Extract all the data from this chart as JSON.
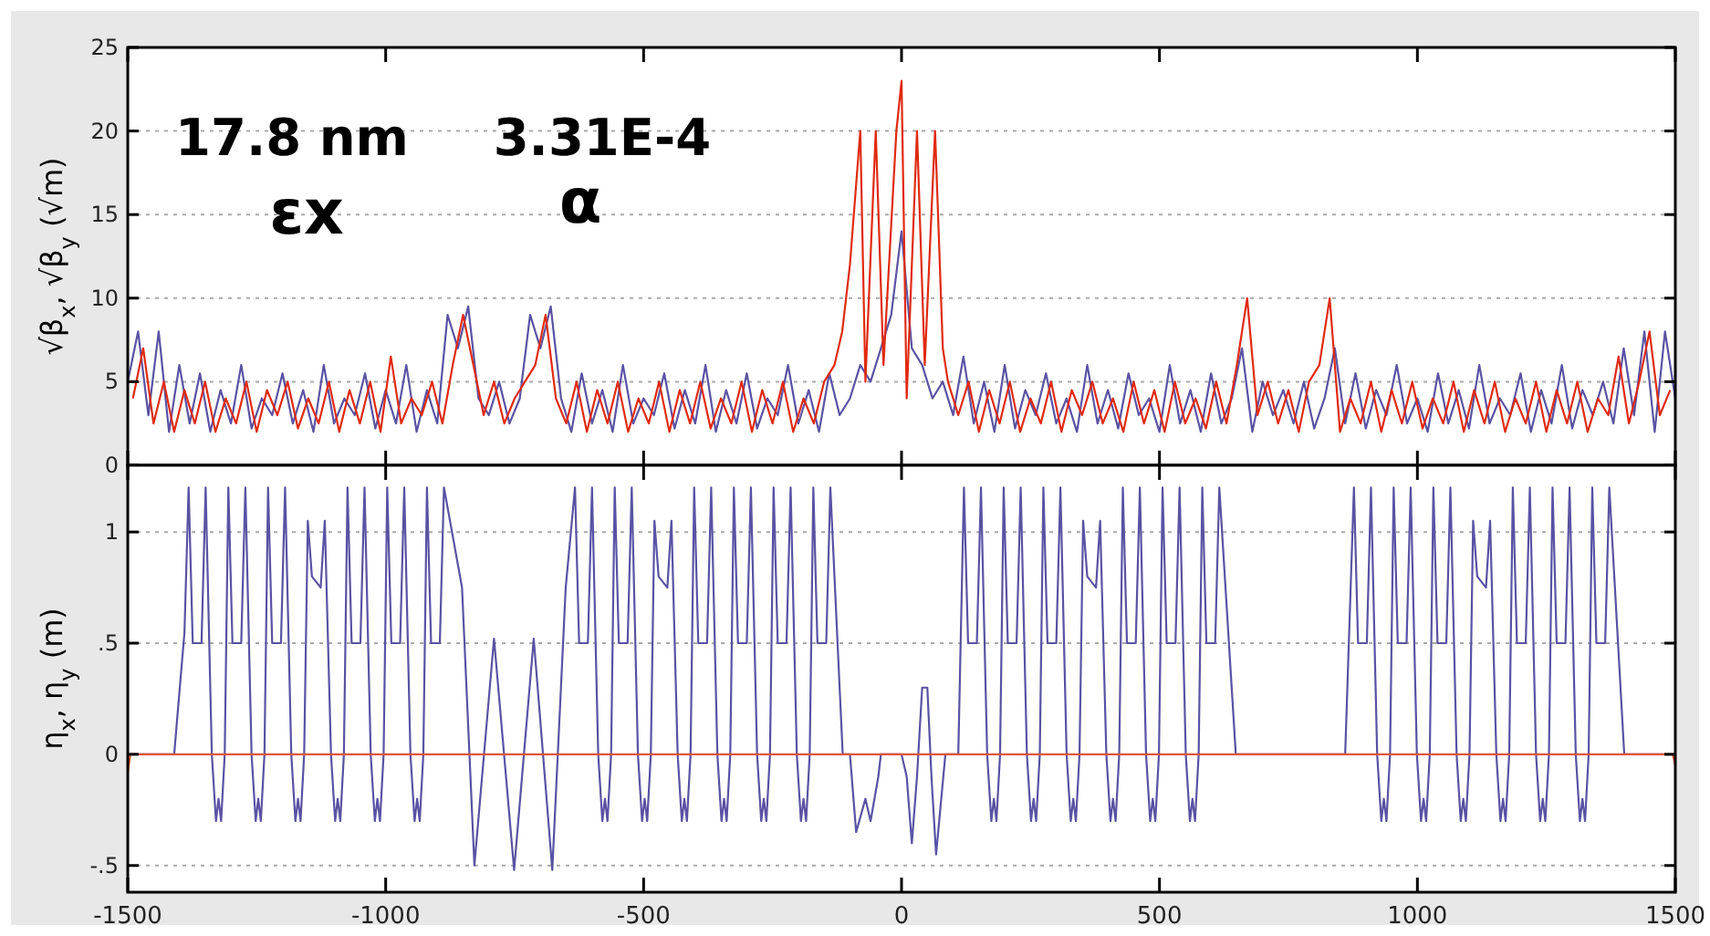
{
  "chart_data": [
    {
      "type": "line",
      "ylabel": "√β$_{x}$, √β$_{y}$ (√m)",
      "xlim": [
        -1500,
        1500
      ],
      "xticks": [
        -1500,
        -1000,
        -500,
        0,
        500,
        1000,
        1500
      ],
      "ylim": [
        0,
        25
      ],
      "yticks": [
        0,
        5,
        10,
        15,
        20,
        25
      ],
      "grid": "y",
      "tick_labels": "y",
      "line_style": "solid",
      "annotations": [
        "17.8 nm",
        "3.31E-4",
        "εx",
        "α"
      ],
      "series": [
        {
          "color": "#5a52a3",
          "x": [
            -1500,
            -1480,
            -1460,
            -1440,
            -1420,
            -1400,
            -1380,
            -1360,
            -1340,
            -1320,
            -1300,
            -1280,
            -1260,
            -1240,
            -1220,
            -1200,
            -1180,
            -1160,
            -1140,
            -1120,
            -1100,
            -1080,
            -1060,
            -1040,
            -1020,
            -1000,
            -980,
            -960,
            -940,
            -920,
            -900,
            -880,
            -860,
            -840,
            -820,
            -800,
            -780,
            -760,
            -740,
            -720,
            -700,
            -680,
            -660,
            -640,
            -620,
            -600,
            -580,
            -560,
            -540,
            -520,
            -500,
            -480,
            -460,
            -440,
            -420,
            -400,
            -380,
            -360,
            -340,
            -320,
            -300,
            -280,
            -260,
            -240,
            -220,
            -200,
            -180,
            -160,
            -140,
            -120,
            -100,
            -80,
            -60,
            -40,
            -20,
            0,
            20,
            40,
            60,
            80,
            100,
            120,
            140,
            160,
            180,
            200,
            220,
            240,
            260,
            280,
            300,
            320,
            340,
            360,
            380,
            400,
            420,
            440,
            460,
            480,
            500,
            520,
            540,
            560,
            580,
            600,
            620,
            640,
            660,
            680,
            700,
            720,
            740,
            760,
            780,
            800,
            820,
            840,
            860,
            880,
            900,
            920,
            940,
            960,
            980,
            1000,
            1020,
            1040,
            1060,
            1080,
            1100,
            1120,
            1140,
            1160,
            1180,
            1200,
            1220,
            1240,
            1260,
            1280,
            1300,
            1320,
            1340,
            1360,
            1380,
            1400,
            1420,
            1440,
            1460,
            1480,
            1500
          ],
          "values": [
            5,
            8,
            3,
            8,
            2,
            6,
            2.5,
            5.5,
            2,
            4.5,
            2.5,
            6,
            2.2,
            4,
            3,
            5.5,
            2.5,
            4.5,
            2,
            6,
            2.5,
            4,
            3,
            5.5,
            2.2,
            4.5,
            2.5,
            6,
            2,
            4.5,
            2.5,
            9,
            7,
            9.5,
            4,
            3,
            5,
            2.5,
            4,
            9,
            7,
            9.5,
            4,
            2,
            5.5,
            2.5,
            4.5,
            2,
            6,
            2.5,
            4,
            3,
            5.5,
            2.2,
            4.5,
            2.5,
            6,
            2,
            4.5,
            2.5,
            5.5,
            2.2,
            4,
            3,
            6,
            2.5,
            4.5,
            2,
            5.5,
            3,
            4,
            6,
            5,
            7,
            9,
            14,
            7,
            6,
            4,
            5,
            3,
            6.5,
            2.5,
            5,
            2,
            6,
            2.2,
            4.5,
            3,
            5.5,
            2.5,
            4,
            2,
            6,
            2.5,
            4.5,
            2.2,
            5.5,
            3,
            4,
            2,
            6,
            2.5,
            4.5,
            2,
            5.5,
            2.5,
            4,
            7,
            2,
            5,
            3,
            4.5,
            2.5,
            5,
            2.2,
            4,
            7,
            2.5,
            5.5,
            2.2,
            4.5,
            3,
            6,
            2.5,
            4,
            2,
            5.5,
            2.5,
            4.5,
            2.2,
            6,
            2.5,
            4,
            3,
            5.5,
            2,
            4.5,
            2.5,
            6,
            2.2,
            4.5,
            3,
            5,
            2.5,
            7,
            3,
            8,
            2,
            8,
            4
          ]
        },
        {
          "color": "#e02a10",
          "x": [
            -1490,
            -1470,
            -1450,
            -1430,
            -1410,
            -1390,
            -1370,
            -1350,
            -1330,
            -1310,
            -1290,
            -1270,
            -1250,
            -1230,
            -1210,
            -1190,
            -1170,
            -1150,
            -1130,
            -1110,
            -1090,
            -1070,
            -1050,
            -1030,
            -1010,
            -990,
            -970,
            -950,
            -930,
            -910,
            -890,
            -870,
            -850,
            -830,
            -810,
            -790,
            -770,
            -750,
            -730,
            -710,
            -690,
            -670,
            -650,
            -630,
            -610,
            -590,
            -570,
            -550,
            -530,
            -510,
            -490,
            -470,
            -450,
            -430,
            -410,
            -390,
            -370,
            -350,
            -330,
            -310,
            -290,
            -270,
            -250,
            -230,
            -210,
            -190,
            -170,
            -150,
            -130,
            -115,
            -100,
            -80,
            -70,
            -50,
            -35,
            -10,
            0,
            10,
            30,
            45,
            65,
            80,
            90,
            110,
            130,
            150,
            170,
            190,
            210,
            230,
            250,
            270,
            290,
            310,
            330,
            350,
            370,
            390,
            410,
            430,
            450,
            470,
            490,
            510,
            530,
            550,
            570,
            590,
            610,
            630,
            650,
            670,
            690,
            710,
            730,
            750,
            770,
            790,
            810,
            830,
            850,
            870,
            890,
            910,
            930,
            950,
            970,
            990,
            1010,
            1030,
            1050,
            1070,
            1090,
            1110,
            1130,
            1150,
            1170,
            1190,
            1210,
            1230,
            1250,
            1270,
            1290,
            1310,
            1330,
            1350,
            1370,
            1390,
            1410,
            1430,
            1450,
            1470,
            1490
          ],
          "values": [
            4,
            7,
            2.5,
            5,
            2,
            4.5,
            2.5,
            5,
            2,
            4,
            2.5,
            5,
            2,
            4.5,
            3,
            5,
            2.2,
            4,
            2.5,
            5,
            2,
            4.5,
            2.5,
            5,
            2,
            6.5,
            2.5,
            4,
            3,
            5,
            2.5,
            6,
            9,
            6,
            3,
            5,
            2.5,
            4,
            5,
            6,
            9,
            4,
            2.5,
            5,
            2,
            4.5,
            2.5,
            5,
            2,
            4,
            2.5,
            5,
            2,
            4.5,
            2.5,
            5,
            2.2,
            4,
            2.5,
            5,
            2,
            4.5,
            2.5,
            5,
            2,
            4,
            2.5,
            5,
            6,
            8,
            12,
            20,
            5,
            20,
            6,
            20,
            23,
            4,
            20,
            6,
            20,
            7,
            5,
            3,
            5,
            2,
            4.5,
            2.5,
            5,
            2,
            4,
            2.5,
            5,
            2,
            4.5,
            3,
            5,
            2.5,
            4,
            2,
            5,
            2.5,
            4.5,
            2,
            5,
            2.5,
            4,
            2.2,
            5,
            2.5,
            6,
            10,
            3,
            5,
            2.5,
            4.5,
            2,
            5,
            6,
            10,
            2,
            4,
            2.5,
            5,
            2,
            4.5,
            2.5,
            5,
            2.2,
            4,
            2.5,
            5,
            2,
            4.5,
            2.5,
            5,
            2,
            4,
            2.5,
            5,
            2,
            4.5,
            2.5,
            5,
            2,
            4,
            3,
            6.5,
            2.5,
            5,
            8,
            3,
            4.5
          ]
        }
      ]
    },
    {
      "type": "line",
      "ylabel": "η$_{x}$, η$_{y}$ (m)",
      "xlim": [
        -1500,
        1500
      ],
      "xticks": [
        -1500,
        -1000,
        -500,
        0,
        500,
        1000,
        1500
      ],
      "ylim": [
        -0.62,
        1.3
      ],
      "yticks": [
        {
          "value": -0.5,
          "label": "-.5"
        },
        0,
        {
          "value": 0.5,
          "label": ".5"
        },
        1
      ],
      "grid": "y",
      "line_style": "solid",
      "series": [
        {
          "color": "#5a52a3",
          "x": [
            -1500,
            -1410,
            -1390,
            -1382,
            -1374,
            -1357,
            -1349,
            -1337,
            -1329,
            -1324,
            -1319,
            -1312,
            -1305,
            -1297,
            -1280,
            -1272,
            -1260,
            -1252,
            -1247,
            -1242,
            -1235,
            -1228,
            -1220,
            -1203,
            -1195,
            -1183,
            -1175,
            -1170,
            -1165,
            -1158,
            -1151,
            -1143,
            -1126,
            -1118,
            -1106,
            -1098,
            -1093,
            -1088,
            -1081,
            -1074,
            -1066,
            -1049,
            -1041,
            -1029,
            -1021,
            -1016,
            -1011,
            -1004,
            -997,
            -989,
            -972,
            -964,
            -952,
            -944,
            -939,
            -934,
            -927,
            -920,
            -912,
            -895,
            -887,
            -852,
            -828,
            -790,
            -751,
            -713,
            -677,
            -651,
            -633,
            -625,
            -608,
            -600,
            -588,
            -580,
            -575,
            -570,
            -563,
            -556,
            -548,
            -531,
            -523,
            -511,
            -503,
            -498,
            -493,
            -486,
            -479,
            -471,
            -454,
            -446,
            -434,
            -426,
            -421,
            -416,
            -409,
            -402,
            -394,
            -377,
            -369,
            -357,
            -349,
            -344,
            -339,
            -332,
            -325,
            -317,
            -300,
            -292,
            -280,
            -272,
            -267,
            -262,
            -255,
            -248,
            -240,
            -223,
            -215,
            -203,
            -195,
            -190,
            -185,
            -178,
            -171,
            -163,
            -146,
            -138,
            -114,
            -100,
            -88,
            -70,
            -60,
            -45,
            -40,
            -20,
            0,
            10,
            20,
            30,
            40,
            50,
            58,
            67,
            85,
            110,
            121,
            129,
            146,
            154,
            166,
            174,
            179,
            184,
            191,
            198,
            206,
            223,
            231,
            243,
            251,
            256,
            261,
            268,
            275,
            283,
            300,
            308,
            320,
            328,
            333,
            338,
            345,
            352,
            360,
            377,
            385,
            397,
            405,
            410,
            415,
            422,
            429,
            437,
            454,
            462,
            474,
            482,
            487,
            492,
            499,
            506,
            514,
            531,
            539,
            551,
            559,
            564,
            569,
            576,
            583,
            591,
            608,
            616,
            648,
            700,
            720,
            740,
            760,
            780,
            800,
            860,
            877,
            885,
            902,
            910,
            922,
            930,
            935,
            940,
            947,
            954,
            962,
            979,
            987,
            999,
            1007,
            1012,
            1017,
            1024,
            1031,
            1039,
            1056,
            1064,
            1076,
            1084,
            1089,
            1094,
            1101,
            1108,
            1116,
            1133,
            1141,
            1153,
            1161,
            1166,
            1171,
            1178,
            1185,
            1193,
            1210,
            1218,
            1230,
            1238,
            1243,
            1248,
            1255,
            1262,
            1270,
            1287,
            1295,
            1307,
            1315,
            1320,
            1325,
            1332,
            1339,
            1347,
            1364,
            1372,
            1401,
            1500
          ],
          "values": [
            0,
            0,
            0.55,
            1.2,
            0.5,
            0.5,
            1.2,
            0,
            -0.3,
            -0.2,
            -0.3,
            0,
            1.2,
            0.5,
            0.5,
            1.2,
            0,
            -0.3,
            -0.2,
            -0.3,
            0,
            1.2,
            0.5,
            0.5,
            1.2,
            0,
            -0.3,
            -0.2,
            -0.3,
            0,
            1.05,
            0.8,
            0.75,
            1.05,
            0,
            -0.3,
            -0.2,
            -0.3,
            0,
            1.2,
            0.5,
            0.5,
            1.2,
            0,
            -0.3,
            -0.2,
            -0.3,
            0,
            1.2,
            0.5,
            0.5,
            1.2,
            0,
            -0.3,
            -0.2,
            -0.3,
            0,
            1.2,
            0.5,
            0.5,
            1.2,
            0.75,
            -0.5,
            0.52,
            -0.52,
            0.52,
            -0.52,
            0.75,
            1.2,
            0.5,
            0.5,
            1.2,
            0,
            -0.3,
            -0.2,
            -0.3,
            0,
            1.2,
            0.5,
            0.5,
            1.2,
            0,
            -0.3,
            -0.2,
            -0.3,
            0,
            1.05,
            0.8,
            0.75,
            1.05,
            0,
            -0.3,
            -0.2,
            -0.3,
            0,
            1.2,
            0.5,
            0.5,
            1.2,
            0,
            -0.3,
            -0.2,
            -0.3,
            0,
            1.2,
            0.5,
            0.5,
            1.2,
            0,
            -0.3,
            -0.2,
            -0.3,
            0,
            1.2,
            0.5,
            0.5,
            1.2,
            0,
            -0.3,
            -0.2,
            -0.3,
            0,
            1.2,
            0.5,
            0.5,
            1.2,
            0,
            0,
            -0.35,
            -0.2,
            -0.3,
            -0.1,
            0,
            0,
            0,
            -0.1,
            -0.4,
            -0.1,
            0.3,
            0.3,
            -0.1,
            -0.45,
            0,
            0,
            1.2,
            0.5,
            0.5,
            1.2,
            0,
            -0.3,
            -0.2,
            -0.3,
            0,
            1.2,
            0.5,
            0.5,
            1.2,
            0,
            -0.3,
            -0.2,
            -0.3,
            0,
            1.2,
            0.5,
            0.5,
            1.2,
            0,
            -0.3,
            -0.2,
            -0.3,
            0,
            1.05,
            0.8,
            0.75,
            1.05,
            0,
            -0.3,
            -0.2,
            -0.3,
            0,
            1.2,
            0.5,
            0.5,
            1.2,
            0,
            -0.3,
            -0.2,
            -0.3,
            0,
            1.2,
            0.5,
            0.5,
            1.2,
            0,
            -0.3,
            -0.2,
            -0.3,
            0,
            1.2,
            0.5,
            0.5,
            1.2,
            0,
            0,
            0,
            0,
            0,
            0,
            0,
            0,
            1.2,
            0.5,
            0.5,
            1.2,
            0,
            -0.3,
            -0.2,
            -0.3,
            0,
            1.2,
            0.5,
            0.5,
            1.2,
            0,
            -0.3,
            -0.2,
            -0.3,
            0,
            1.2,
            0.5,
            0.5,
            1.2,
            0,
            -0.3,
            -0.2,
            -0.3,
            0,
            1.05,
            0.8,
            0.75,
            1.05,
            0,
            -0.3,
            -0.2,
            -0.3,
            0,
            1.2,
            0.5,
            0.5,
            1.2,
            0,
            -0.3,
            -0.2,
            -0.3,
            0,
            1.2,
            0.5,
            0.5,
            1.2,
            0,
            -0.3,
            -0.2,
            -0.3,
            0,
            1.2,
            0.5,
            0.5,
            1.2,
            0,
            0
          ]
        },
        {
          "color": "#e0552f",
          "x": [
            -1500,
            -1495,
            1495,
            1500
          ],
          "values": [
            -0.08,
            0,
            0,
            -0.05
          ]
        }
      ]
    }
  ]
}
